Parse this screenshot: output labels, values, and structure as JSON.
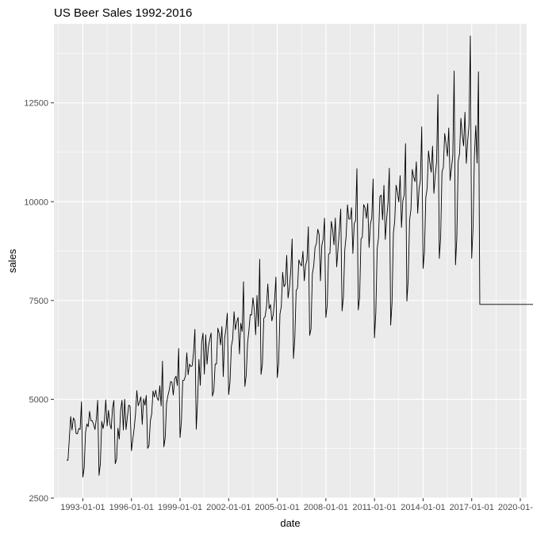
{
  "chart_data": {
    "type": "line",
    "title": "US Beer Sales 1992-2016",
    "xlabel": "date",
    "ylabel": "sales",
    "xlim": [
      "1992-01-01",
      "2020-01-01"
    ],
    "ylim": [
      2500,
      14500
    ],
    "grid": true,
    "legend": "none",
    "colors": {
      "panel": "#EBEBEB",
      "grid": "#FFFFFF",
      "line": "#000000",
      "tick_text": "#4D4D4D"
    },
    "x_ticks": [
      "1993-01-01",
      "1996-01-01",
      "1999-01-01",
      "2002-01-01",
      "2005-01-01",
      "2008-01-01",
      "2011-01-01",
      "2014-01-01",
      "2017-01-01",
      "2020-01-01"
    ],
    "y_ticks": [
      2500,
      5000,
      7500,
      10000,
      12500
    ],
    "y_tick_labels": [
      "2500",
      "5000",
      "7500",
      "10000",
      "12500"
    ],
    "x_tick_labels": [
      "1993-01-01",
      "1996-01-01",
      "1999-01-01",
      "2002-01-01",
      "2005-01-01",
      "2008-01-01",
      "2011-01-01",
      "2014-01-01",
      "2017-01-01",
      "2020-01-01"
    ],
    "series": [
      {
        "start": "1992-01",
        "values": [
          3459,
          3458,
          4002,
          4564,
          4221,
          4529,
          4466,
          4137,
          4126,
          4259,
          4240,
          4936,
          3031,
          3261,
          4160,
          4377,
          4307,
          4696,
          4458,
          4457,
          4364,
          4236,
          4500,
          4974,
          3075,
          3377,
          4443,
          4261,
          4460,
          4985,
          4324,
          4719,
          4374,
          4248,
          4784,
          4971,
          3370,
          3484,
          4269,
          3994,
          4715,
          4974,
          4223,
          5000,
          4235,
          4554,
          4851,
          4826,
          3699,
          3983,
          4262,
          4619,
          5219,
          4836,
          4941,
          5062,
          4365,
          5012,
          4850,
          5097,
          3758,
          3825,
          4454,
          4635,
          5210,
          5057,
          5231,
          5034,
          4970,
          5342,
          4831,
          5965,
          3796,
          4019,
          4898,
          5090,
          5237,
          5447,
          5435,
          5107,
          5515,
          5583,
          5346,
          6286,
          4032,
          4435,
          5479,
          5483,
          5587,
          6176,
          5621,
          5889,
          5828,
          5849,
          6180,
          6771,
          4243,
          4952,
          6008,
          5353,
          6435,
          6673,
          5636,
          6630,
          5887,
          6322,
          6520,
          6678,
          5082,
          5216,
          5893,
          5894,
          6799,
          6667,
          6374,
          6840,
          5575,
          6545,
          6789,
          7180,
          5117,
          5442,
          6337,
          6525,
          7216,
          6761,
          6958,
          7070,
          6148,
          6924,
          6716,
          7975,
          5326,
          5609,
          6414,
          6741,
          7144,
          7133,
          7568,
          7266,
          6634,
          7626,
          6843,
          8540,
          5629,
          5898,
          7045,
          7094,
          7333,
          7918,
          7289,
          7396,
          6984,
          7140,
          7508,
          8093,
          5548,
          5893,
          7157,
          7349,
          8214,
          7848,
          7918,
          8642,
          7561,
          7824,
          8254,
          9056,
          6034,
          6551,
          7753,
          7812,
          8526,
          8422,
          8376,
          8745,
          7999,
          8399,
          8522,
          9365,
          6617,
          6778,
          8176,
          8379,
          8844,
          8939,
          9302,
          9170,
          7998,
          8891,
          9050,
          9583,
          7070,
          7379,
          8675,
          8694,
          9502,
          9295,
          8907,
          9585,
          8350,
          8808,
          9280,
          9814,
          7235,
          7589,
          8779,
          9127,
          9922,
          9560,
          9563,
          9847,
          8689,
          9446,
          9520,
          10834,
          7261,
          7580,
          9051,
          9106,
          9927,
          9840,
          9580,
          9953,
          8841,
          9441,
          9590,
          10572,
          6557,
          7193,
          8805,
          9095,
          10130,
          10168,
          9541,
          10414,
          9045,
          9562,
          9967,
          10847,
          6876,
          7448,
          9209,
          9521,
          10417,
          10248,
          9992,
          10659,
          9351,
          10023,
          10174,
          11469,
          7485,
          8034,
          9529,
          9804,
          10816,
          10627,
          10507,
          11007,
          9707,
          10316,
          10545,
          11894,
          8311,
          8722,
          10102,
          10334,
          11283,
          10984,
          10744,
          11405,
          10212,
          10669,
          11005,
          12711,
          8564,
          9100,
          10749,
          10868,
          11725,
          11460,
          11151,
          11864,
          10540,
          10846,
          11163,
          13308,
          8401,
          9095,
          11022,
          11214,
          12109,
          11691,
          11412,
          12262,
          10968,
          11530,
          11930,
          14193,
          8568,
          9342,
          11156,
          11924,
          10975,
          13285,
          7400,
          7400,
          7400,
          7400,
          7400,
          7400,
          7400,
          7400,
          7400,
          7400,
          7400,
          7400,
          7400,
          7400,
          7400,
          7400,
          7400,
          7400,
          7400,
          7400,
          7400,
          7400,
          7400,
          7400,
          7400,
          7400,
          7400,
          7400,
          7400,
          7400,
          7400,
          7400,
          7400,
          7400,
          7400,
          7400,
          7400,
          7400,
          7400,
          7400,
          7400,
          7400,
          7400,
          7400,
          7400,
          7400,
          7400,
          7400,
          7400,
          7400,
          7400,
          7400,
          7400,
          7400,
          7400,
          7400,
          7400,
          7400,
          7400,
          7400,
          7400
        ]
      }
    ]
  }
}
